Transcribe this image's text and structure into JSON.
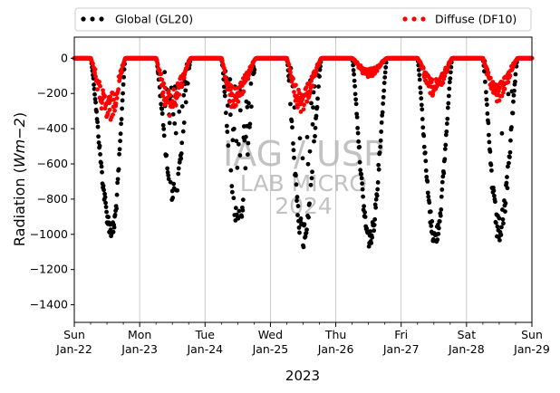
{
  "chart_data": {
    "type": "scatter",
    "title": "",
    "xlabel": "2023",
    "ylabel": "Radiation (Wm−2)",
    "ylabel_parts": {
      "prefix": "Radiation (",
      "units": "Wm−2",
      "suffix": ")"
    },
    "xlim": [
      0,
      7
    ],
    "ylim": [
      -1500,
      120
    ],
    "yticks": [
      0,
      -200,
      -400,
      -600,
      -800,
      -1000,
      -1200,
      -1400
    ],
    "ytick_labels": [
      "0",
      "−200",
      "−400",
      "−600",
      "−800",
      "−1000",
      "−1200",
      "−1400"
    ],
    "xticks": [
      {
        "day": "Sun",
        "date": "Jan-22"
      },
      {
        "day": "Mon",
        "date": "Jan-23"
      },
      {
        "day": "Tue",
        "date": "Jan-24"
      },
      {
        "day": "Wed",
        "date": "Jan-25"
      },
      {
        "day": "Thu",
        "date": "Jan-26"
      },
      {
        "day": "Fri",
        "date": "Jan-27"
      },
      {
        "day": "Sat",
        "date": "Jan-28"
      },
      {
        "day": "Sun",
        "date": "Jan-29"
      }
    ],
    "grid": "vertical",
    "legend_placement": "top",
    "watermark": [
      "IAG / USP",
      "LAB MICRO",
      "2024"
    ],
    "series": [
      {
        "name": "Global (GL20)",
        "color": "#000000",
        "days": [
          {
            "peak": -1030,
            "tmax": 0.58,
            "shape": 1.0
          },
          {
            "peak": -820,
            "tmax": 0.52,
            "shape": 0.55
          },
          {
            "peak": -980,
            "tmax": 0.5,
            "shape": 0.45
          },
          {
            "peak": -1080,
            "tmax": 0.5,
            "shape": 0.8
          },
          {
            "peak": -1080,
            "tmax": 0.52,
            "shape": 1.0
          },
          {
            "peak": -1070,
            "tmax": 0.52,
            "shape": 1.0
          },
          {
            "peak": -1060,
            "tmax": 0.5,
            "shape": 0.95
          }
        ]
      },
      {
        "name": "Diffuse (DF10)",
        "color": "#ff0000",
        "days": [
          {
            "peak": -380,
            "tmax": 0.52
          },
          {
            "peak": -330,
            "tmax": 0.45
          },
          {
            "peak": -290,
            "tmax": 0.42
          },
          {
            "peak": -310,
            "tmax": 0.45
          },
          {
            "peak": -110,
            "tmax": 0.5
          },
          {
            "peak": -220,
            "tmax": 0.5
          },
          {
            "peak": -250,
            "tmax": 0.45
          }
        ]
      }
    ]
  }
}
